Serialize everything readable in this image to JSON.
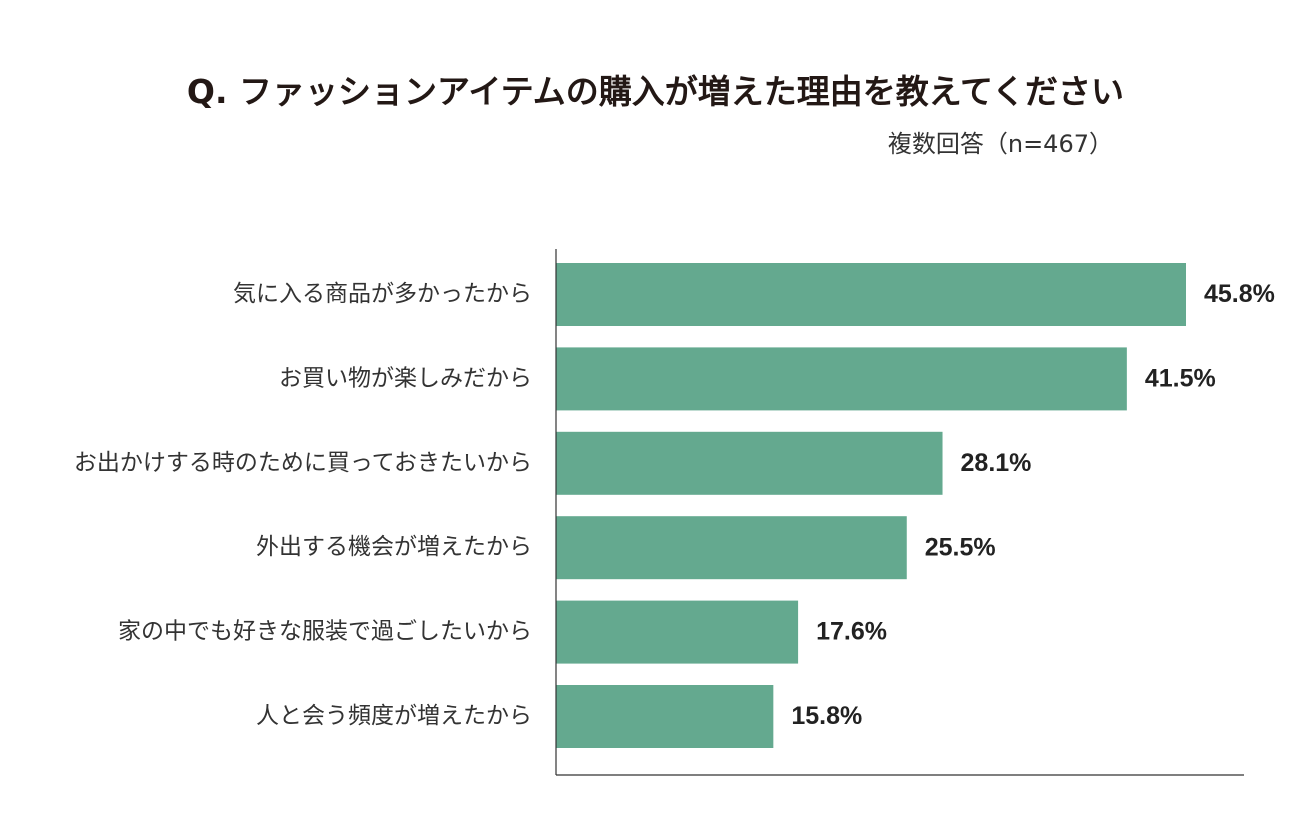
{
  "chart_data": {
    "type": "bar",
    "orientation": "horizontal",
    "title": "Q. ファッションアイテムの購入が増えた理由を教えてください",
    "subtitle": "複数回答（n=467）",
    "categories": [
      "気に入る商品が多かったから",
      "お買い物が楽しみだから",
      "お出かけする時のために買っておきたいから",
      "外出する機会が増えたから",
      "家の中でも好きな服装で過ごしたいから",
      "人と会う頻度が増えたから"
    ],
    "values": [
      45.8,
      41.5,
      28.1,
      25.5,
      17.6,
      15.8
    ],
    "value_labels": [
      "45.8%",
      "41.5%",
      "28.1%",
      "25.5%",
      "17.6%",
      "15.8%"
    ],
    "xlim": [
      0,
      50
    ],
    "grid": false,
    "bar_color": "#64a98f",
    "axis_color": "#333333"
  }
}
